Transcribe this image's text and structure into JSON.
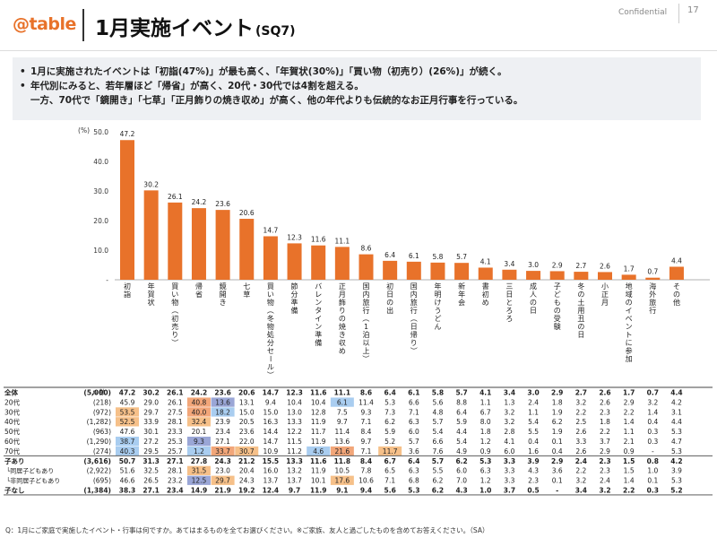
{
  "header": {
    "logo": "@table",
    "title": "1月実施イベント",
    "title_sub": "(SQ7)",
    "confidential": "Confidential",
    "page_number": "17"
  },
  "summary": {
    "bullet1": "1月に実施されたイベントは「初詣(47%)」が最も高く、「年賀状(30%)」「買い物（初売り）(26%)」が続く。",
    "bullet2": "年代別にみると、若年層ほど「帰省」が高く、20代・30代では4割を超える。",
    "bullet3": "一方、70代で「鏡開き」「七草」「正月飾りの焼き収め」が高く、他の年代よりも伝統的なお正月行事を行っている。"
  },
  "chart_data": {
    "type": "bar",
    "ylabel": "(%)",
    "ylim": [
      0,
      50
    ],
    "yticks": [
      "50.0",
      "40.0",
      "30.0",
      "20.0",
      "10.0",
      "-"
    ],
    "categories": [
      "初詣",
      "年賀状",
      "買い物（初売り）",
      "帰省",
      "鏡開き",
      "七草",
      "買い物（冬物処分セール）",
      "節分準備",
      "バレンタイン準備",
      "正月飾りの焼き収め",
      "国内旅行（1泊以上）",
      "初日の出",
      "国内旅行（日帰り）",
      "年明けうどん",
      "新年会",
      "書初め",
      "三日とろろ",
      "成人の日",
      "子どもの受験",
      "冬の土用丑の日",
      "小正月",
      "地域のイベントに参加",
      "海外旅行",
      "その他"
    ],
    "values": [
      47.2,
      30.2,
      26.1,
      24.2,
      23.6,
      20.6,
      14.7,
      12.3,
      11.6,
      11.1,
      8.6,
      6.4,
      6.1,
      5.8,
      5.7,
      4.1,
      3.4,
      3.0,
      2.9,
      2.7,
      2.6,
      1.7,
      0.7,
      4.4
    ],
    "bar_color": "#e8722a"
  },
  "table": {
    "n_header": "n 数",
    "rows": [
      {
        "label": "全体",
        "n": "(5,000)",
        "bold": true,
        "values": [
          "47.2",
          "30.2",
          "26.1",
          "24.2",
          "23.6",
          "20.6",
          "14.7",
          "12.3",
          "11.6",
          "11.1",
          "8.6",
          "6.4",
          "6.1",
          "5.8",
          "5.7",
          "4.1",
          "3.4",
          "3.0",
          "2.9",
          "2.7",
          "2.6",
          "1.7",
          "0.7",
          "4.4"
        ]
      },
      {
        "label": "20代",
        "n": "(218)",
        "values": [
          "45.9",
          "29.0",
          "26.1",
          "40.8",
          "13.6",
          "13.1",
          "9.4",
          "10.4",
          "10.4",
          "6.1",
          "11.4",
          "5.3",
          "6.6",
          "5.6",
          "8.8",
          "1.1",
          "1.3",
          "2.4",
          "1.8",
          "3.2",
          "2.6",
          "2.9",
          "3.2",
          "4.2"
        ]
      },
      {
        "label": "30代",
        "n": "(972)",
        "values": [
          "53.5",
          "29.7",
          "27.5",
          "40.0",
          "18.2",
          "15.0",
          "15.0",
          "13.0",
          "12.8",
          "7.5",
          "9.3",
          "7.3",
          "7.1",
          "4.8",
          "6.4",
          "6.7",
          "3.2",
          "1.1",
          "1.9",
          "2.2",
          "2.3",
          "2.2",
          "1.4",
          "3.1"
        ]
      },
      {
        "label": "40代",
        "n": "(1,282)",
        "values": [
          "52.5",
          "33.9",
          "28.1",
          "32.4",
          "23.9",
          "20.5",
          "16.3",
          "13.3",
          "11.9",
          "9.7",
          "7.1",
          "6.2",
          "6.3",
          "5.7",
          "5.9",
          "8.0",
          "3.2",
          "5.4",
          "6.2",
          "2.5",
          "1.8",
          "1.4",
          "0.4",
          "4.4"
        ]
      },
      {
        "label": "50代",
        "n": "(963)",
        "values": [
          "47.6",
          "30.1",
          "23.3",
          "20.1",
          "23.4",
          "23.6",
          "14.4",
          "12.2",
          "11.7",
          "11.4",
          "8.4",
          "5.9",
          "6.0",
          "5.4",
          "4.4",
          "1.8",
          "2.8",
          "5.5",
          "1.9",
          "2.6",
          "2.2",
          "1.1",
          "0.3",
          "5.3"
        ]
      },
      {
        "label": "60代",
        "n": "(1,290)",
        "values": [
          "38.7",
          "27.2",
          "25.3",
          "9.3",
          "27.1",
          "22.0",
          "14.7",
          "11.5",
          "11.9",
          "13.6",
          "9.7",
          "5.2",
          "5.7",
          "6.6",
          "5.4",
          "1.2",
          "4.1",
          "0.4",
          "0.1",
          "3.3",
          "3.7",
          "2.1",
          "0.3",
          "4.7"
        ]
      },
      {
        "label": "70代",
        "n": "(274)",
        "values": [
          "40.3",
          "29.5",
          "25.7",
          "1.2",
          "33.7",
          "30.7",
          "10.9",
          "11.2",
          "4.6",
          "21.6",
          "7.1",
          "11.7",
          "3.6",
          "7.6",
          "4.9",
          "0.9",
          "6.0",
          "1.6",
          "0.4",
          "2.6",
          "2.9",
          "0.9",
          "-",
          "5.3"
        ]
      },
      {
        "label": "子あり",
        "n": "(3,616)",
        "bold": true,
        "values": [
          "50.7",
          "31.3",
          "27.1",
          "27.8",
          "24.3",
          "21.2",
          "15.5",
          "13.3",
          "11.6",
          "11.8",
          "8.4",
          "6.7",
          "6.4",
          "5.7",
          "6.2",
          "5.3",
          "3.3",
          "3.9",
          "2.9",
          "2.4",
          "2.3",
          "1.5",
          "0.8",
          "4.2"
        ]
      },
      {
        "label": "└同居子どもあり",
        "n": "(2,922)",
        "sub": true,
        "values": [
          "51.6",
          "32.5",
          "28.1",
          "31.5",
          "23.0",
          "20.4",
          "16.0",
          "13.2",
          "11.9",
          "10.5",
          "7.8",
          "6.5",
          "6.3",
          "5.5",
          "6.0",
          "6.3",
          "3.3",
          "4.3",
          "3.6",
          "2.2",
          "2.3",
          "1.5",
          "1.0",
          "3.9"
        ]
      },
      {
        "label": "└非同居子どもあり",
        "n": "(695)",
        "sub": true,
        "values": [
          "46.6",
          "26.5",
          "23.2",
          "12.5",
          "29.7",
          "24.3",
          "13.7",
          "13.7",
          "10.1",
          "17.6",
          "10.6",
          "7.1",
          "6.8",
          "6.2",
          "7.0",
          "1.2",
          "3.3",
          "2.3",
          "0.1",
          "3.2",
          "2.4",
          "1.4",
          "0.1",
          "5.3"
        ]
      },
      {
        "label": "子なし",
        "n": "(1,384)",
        "bold": true,
        "values": [
          "38.3",
          "27.1",
          "23.4",
          "14.9",
          "21.9",
          "19.2",
          "12.4",
          "9.7",
          "11.9",
          "9.1",
          "9.4",
          "5.6",
          "5.3",
          "6.2",
          "4.3",
          "1.0",
          "3.7",
          "0.5",
          "-",
          "3.4",
          "3.2",
          "2.2",
          "0.3",
          "5.2"
        ]
      }
    ],
    "highlights": {
      "1-3": "#f2a679",
      "1-4": "#9aa6d6",
      "1-9": "#a9cdf0",
      "2-0": "#f6c089",
      "2-3": "#f2a679",
      "2-4": "#a9cdf0",
      "3-0": "#f6c089",
      "3-3": "#f6c089",
      "5-0": "#a9cdf0",
      "5-3": "#9aa6d6",
      "6-0": "#a9cdf0",
      "6-3": "#a9cdf0",
      "6-4": "#f2a679",
      "6-5": "#f6c089",
      "6-8": "#a9cdf0",
      "6-9": "#f2a679",
      "6-11": "#f6c089",
      "8-3": "#f6c089",
      "9-3": "#9aa6d6",
      "9-4": "#f6c089",
      "9-9": "#f6c089",
      "11-0": "#a9cdf0"
    }
  },
  "footnote": "Q：1月にご家庭で実施したイベント・行事は何ですか。あてはまるものを全てお選びください。※ご家族、友人と過ごしたものを含めてお答えください。（SA）"
}
